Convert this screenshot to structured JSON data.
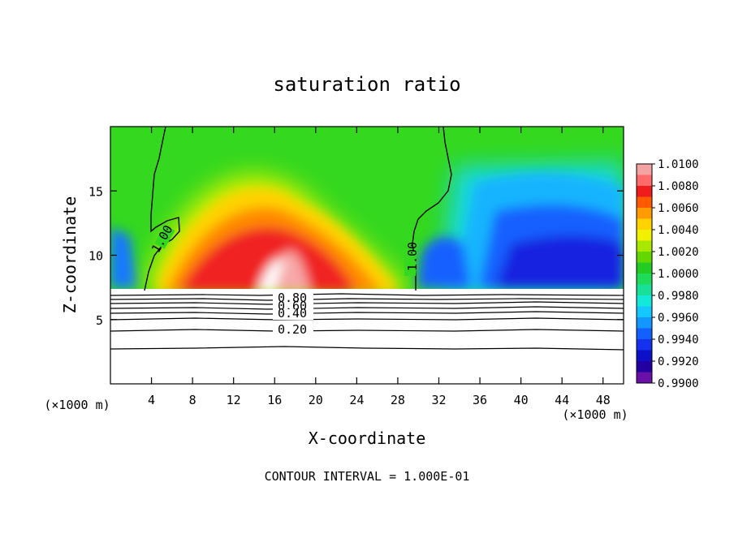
{
  "chart_data": {
    "type": "heatmap",
    "title": "saturation ratio",
    "xlabel": "X-coordinate",
    "ylabel": "Z-coordinate",
    "x_unit_left": "(×1000 m)",
    "x_unit_right": "(×1000 m)",
    "footer": "CONTOUR INTERVAL = 1.000E-01",
    "xlim": [
      0,
      50
    ],
    "ylim": [
      0,
      20
    ],
    "x_ticks": [
      "4",
      "8",
      "12",
      "16",
      "20",
      "24",
      "28",
      "32",
      "36",
      "40",
      "44",
      "48"
    ],
    "y_ticks": [
      "5",
      "10",
      "15"
    ],
    "colorbar": {
      "range": [
        0.99,
        1.01
      ],
      "labels": [
        "1.0100",
        "1.0080",
        "1.0060",
        "1.0040",
        "1.0020",
        "1.0000",
        "0.9980",
        "0.9960",
        "0.9940",
        "0.9920",
        "0.9900"
      ],
      "colors": [
        "#f4a3a3",
        "#ff6a6a",
        "#ee1c1c",
        "#ff5a00",
        "#ff9a00",
        "#ffd200",
        "#f0f000",
        "#a8e800",
        "#62d800",
        "#22cc22",
        "#1edc5a",
        "#18e098",
        "#14e8d8",
        "#14c8ff",
        "#1496ff",
        "#1460ff",
        "#1432ee",
        "#0e10c8",
        "#2200a0",
        "#6a10a8"
      ]
    },
    "contour_labels": [
      "1.00",
      "1.00",
      "0.80",
      "0.60",
      "0.40",
      "0.20"
    ],
    "contour_levels": [
      0.2,
      0.4,
      0.6,
      0.8,
      1.0
    ]
  }
}
